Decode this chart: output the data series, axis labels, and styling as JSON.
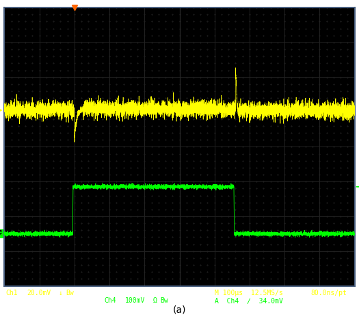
{
  "bg_color": "#000000",
  "outer_bg": "#ffffff",
  "border_color": "#1a3a5c",
  "grid_color": "#1e1e1e",
  "ch1_color": "#ffff00",
  "ch4_color": "#00ff00",
  "title": "(a)",
  "ch1_label1": "Ch1",
  "ch1_label2": "20.0mV",
  "ch1_label3": "↓",
  "ch1_label4": "Bw",
  "ch4_label1": "Ch4",
  "ch4_label2": "100mV",
  "ch4_label3": "Ω",
  "ch4_label4": "Bw",
  "right_label1": "M 100μs  12.5MS/s",
  "right_label2": "80.0ns/pt",
  "cursor_label1": "A  Ch4  ∕  34.0mV",
  "trigger_color": "#ff6600",
  "scope_border": "#4a6080"
}
